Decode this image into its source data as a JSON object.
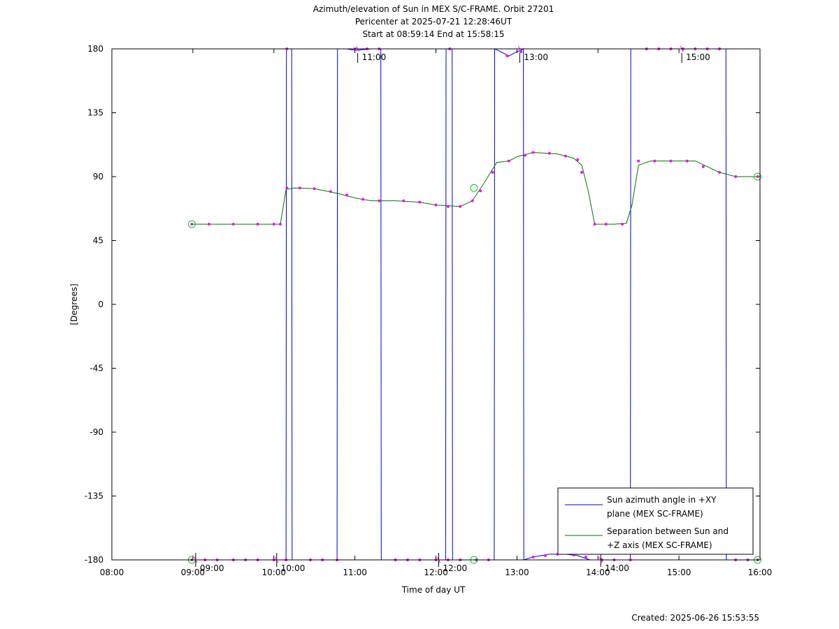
{
  "title_lines": [
    "Azimuth/elevation of Sun in MEX S/C-FRAME.  Orbit 27201",
    "Pericenter at 2025-07-21 12:28:46UT",
    "Start at 08:59:14 End at 15:58:15"
  ],
  "created": "Created: 2025-06-26 15:53:55",
  "chart_data": {
    "type": "line",
    "xlabel": "Time of day UT",
    "ylabel": "[Degrees]",
    "xlim": [
      8.0,
      16.0
    ],
    "ylim": [
      -180,
      180
    ],
    "x_ticks": [
      {
        "v": 8,
        "label": "08:00"
      },
      {
        "v": 9,
        "label": "09:00"
      },
      {
        "v": 10,
        "label": "10:00"
      },
      {
        "v": 11,
        "label": "11:00"
      },
      {
        "v": 12,
        "label": "12:00"
      },
      {
        "v": 13,
        "label": "13:00"
      },
      {
        "v": 14,
        "label": "14:00"
      },
      {
        "v": 15,
        "label": "15:00"
      },
      {
        "v": 16,
        "label": "16:00"
      }
    ],
    "y_ticks": [
      {
        "v": 180,
        "label": "180"
      },
      {
        "v": 135,
        "label": "135"
      },
      {
        "v": 90,
        "label": "90"
      },
      {
        "v": 45,
        "label": "45"
      },
      {
        "v": 0,
        "label": "0"
      },
      {
        "v": -45,
        "label": "-45"
      },
      {
        "v": -90,
        "label": "-90"
      },
      {
        "v": -135,
        "label": "-135"
      },
      {
        "v": -180,
        "label": "-180"
      }
    ],
    "legend": {
      "placement": "bottom-right"
    },
    "series": [
      {
        "name": "Sun azimuth angle in +XY plane (MEX SC-FRAME)",
        "legend_lines": [
          "Sun azimuth angle in +XY",
          "plane (MEX SC-FRAME)"
        ],
        "color": "#0000cc",
        "points": [
          [
            8.987,
            -180
          ],
          [
            9.2,
            -180
          ],
          [
            9.5,
            -180
          ],
          [
            9.8,
            -180
          ],
          [
            10.0,
            -180
          ],
          [
            10.15,
            -180
          ],
          [
            10.155,
            180
          ],
          [
            10.22,
            180
          ],
          [
            10.225,
            -180
          ],
          [
            10.5,
            -180
          ],
          [
            10.78,
            -180
          ],
          [
            10.785,
            180
          ],
          [
            10.9,
            180
          ],
          [
            11.0,
            179
          ],
          [
            11.2,
            180
          ],
          [
            11.32,
            180
          ],
          [
            11.325,
            -180
          ],
          [
            11.6,
            -180
          ],
          [
            11.9,
            -180
          ],
          [
            12.0,
            -180
          ],
          [
            12.12,
            -180
          ],
          [
            12.125,
            180
          ],
          [
            12.2,
            180
          ],
          [
            12.205,
            -180
          ],
          [
            12.45,
            -180
          ],
          [
            12.72,
            -180
          ],
          [
            12.725,
            180
          ],
          [
            12.8,
            178
          ],
          [
            12.9,
            175
          ],
          [
            13.0,
            178
          ],
          [
            13.05,
            179
          ],
          [
            13.08,
            180
          ],
          [
            13.085,
            -180
          ],
          [
            13.2,
            -178
          ],
          [
            13.4,
            -176
          ],
          [
            13.6,
            -176
          ],
          [
            13.75,
            -177
          ],
          [
            13.9,
            -180
          ],
          [
            14.0,
            -180
          ],
          [
            14.2,
            -180
          ],
          [
            14.4,
            -180
          ],
          [
            14.405,
            180
          ],
          [
            14.7,
            180
          ],
          [
            15.0,
            180
          ],
          [
            15.3,
            180
          ],
          [
            15.58,
            180
          ],
          [
            15.585,
            -180
          ],
          [
            15.8,
            -180
          ],
          [
            15.97,
            -180
          ]
        ],
        "direction_labels": [
          {
            "t": 9.0,
            "y": -180,
            "label": "09:00"
          },
          {
            "t": 10.0,
            "y": -180,
            "label": "10:00"
          },
          {
            "t": 11.0,
            "y": 180,
            "label": "11:00"
          },
          {
            "t": 12.0,
            "y": -180,
            "label": "12:00"
          },
          {
            "t": 13.0,
            "y": 180,
            "label": "13:00"
          },
          {
            "t": 14.0,
            "y": -180,
            "label": "14:00"
          },
          {
            "t": 15.0,
            "y": 180,
            "label": "15:00"
          }
        ]
      },
      {
        "name": "Separation between Sun and +Z axis (MEX SC-FRAME)",
        "legend_lines": [
          "Separation between Sun and",
          "+Z axis (MEX SC-FRAME)"
        ],
        "color": "#007700",
        "points": [
          [
            8.987,
            56.5
          ],
          [
            9.2,
            56.5
          ],
          [
            9.5,
            56.5
          ],
          [
            9.8,
            56.5
          ],
          [
            10.0,
            56.5
          ],
          [
            10.08,
            56.5
          ],
          [
            10.15,
            81
          ],
          [
            10.25,
            82
          ],
          [
            10.5,
            81.5
          ],
          [
            10.8,
            78
          ],
          [
            11.0,
            75
          ],
          [
            11.2,
            73
          ],
          [
            11.5,
            73
          ],
          [
            11.8,
            72
          ],
          [
            12.0,
            70
          ],
          [
            12.3,
            69
          ],
          [
            12.45,
            73
          ],
          [
            12.6,
            86
          ],
          [
            12.75,
            100
          ],
          [
            12.9,
            101
          ],
          [
            13.0,
            104
          ],
          [
            13.2,
            107
          ],
          [
            13.5,
            106
          ],
          [
            13.7,
            103
          ],
          [
            13.8,
            98
          ],
          [
            13.88,
            80
          ],
          [
            13.96,
            56.5
          ],
          [
            14.2,
            56.5
          ],
          [
            14.35,
            57
          ],
          [
            14.42,
            70
          ],
          [
            14.5,
            98
          ],
          [
            14.65,
            101
          ],
          [
            14.9,
            101
          ],
          [
            15.2,
            101
          ],
          [
            15.5,
            93
          ],
          [
            15.7,
            90
          ],
          [
            15.97,
            90
          ]
        ],
        "markers": [
          [
            8.987,
            56.5
          ],
          [
            9.2,
            56.5
          ],
          [
            9.5,
            56.5
          ],
          [
            9.8,
            56.5
          ],
          [
            10.0,
            56.5
          ],
          [
            10.08,
            56.5
          ],
          [
            10.16,
            82
          ],
          [
            10.32,
            82
          ],
          [
            10.5,
            81.5
          ],
          [
            10.7,
            79.5
          ],
          [
            10.9,
            77
          ],
          [
            11.1,
            74
          ],
          [
            11.3,
            73
          ],
          [
            11.6,
            73
          ],
          [
            11.8,
            72
          ],
          [
            12.0,
            70
          ],
          [
            12.15,
            69
          ],
          [
            12.3,
            69
          ],
          [
            12.45,
            73
          ],
          [
            12.55,
            80
          ],
          [
            12.7,
            93
          ],
          [
            12.9,
            101
          ],
          [
            13.1,
            105
          ],
          [
            13.2,
            107
          ],
          [
            13.4,
            106.5
          ],
          [
            13.6,
            104.5
          ],
          [
            13.75,
            102
          ],
          [
            13.8,
            93
          ],
          [
            13.96,
            56.5
          ],
          [
            14.1,
            56.5
          ],
          [
            14.3,
            56.5
          ],
          [
            14.5,
            101
          ],
          [
            14.7,
            101
          ],
          [
            14.9,
            101
          ],
          [
            15.1,
            101
          ],
          [
            15.3,
            97
          ],
          [
            15.5,
            93
          ],
          [
            15.7,
            90
          ],
          [
            15.97,
            90
          ]
        ],
        "circles": [
          [
            8.987,
            56.5
          ],
          [
            12.47,
            82
          ],
          [
            15.97,
            90
          ]
        ]
      }
    ],
    "azimuth_markers": [
      [
        8.987,
        -180
      ],
      [
        9.15,
        -180
      ],
      [
        9.3,
        -180
      ],
      [
        9.5,
        -180
      ],
      [
        9.65,
        -180
      ],
      [
        9.8,
        -180
      ],
      [
        10.0,
        -180
      ],
      [
        10.15,
        -180
      ],
      [
        10.16,
        180
      ],
      [
        10.45,
        -180
      ],
      [
        10.6,
        -180
      ],
      [
        10.78,
        -180
      ],
      [
        11.0,
        180
      ],
      [
        11.15,
        180
      ],
      [
        11.3,
        180
      ],
      [
        11.5,
        -180
      ],
      [
        11.65,
        -180
      ],
      [
        11.8,
        -180
      ],
      [
        12.0,
        -180
      ],
      [
        12.15,
        -180
      ],
      [
        12.17,
        180
      ],
      [
        12.3,
        -180
      ],
      [
        12.5,
        -180
      ],
      [
        12.65,
        -180
      ],
      [
        12.88,
        175
      ],
      [
        13.05,
        178
      ],
      [
        13.2,
        -178
      ],
      [
        13.35,
        -177
      ],
      [
        13.5,
        -176
      ],
      [
        13.7,
        -176.5
      ],
      [
        13.85,
        -178
      ],
      [
        14.05,
        -180
      ],
      [
        14.2,
        -180
      ],
      [
        14.4,
        -180
      ],
      [
        14.6,
        180
      ],
      [
        14.75,
        180
      ],
      [
        14.9,
        180
      ],
      [
        15.05,
        180
      ],
      [
        15.2,
        180
      ],
      [
        15.35,
        180
      ],
      [
        15.5,
        180
      ],
      [
        15.7,
        -180
      ],
      [
        15.85,
        -180
      ],
      [
        15.97,
        -180
      ]
    ],
    "azimuth_circles": [
      [
        8.987,
        -180
      ],
      [
        12.47,
        -180
      ],
      [
        15.97,
        -180
      ]
    ]
  }
}
